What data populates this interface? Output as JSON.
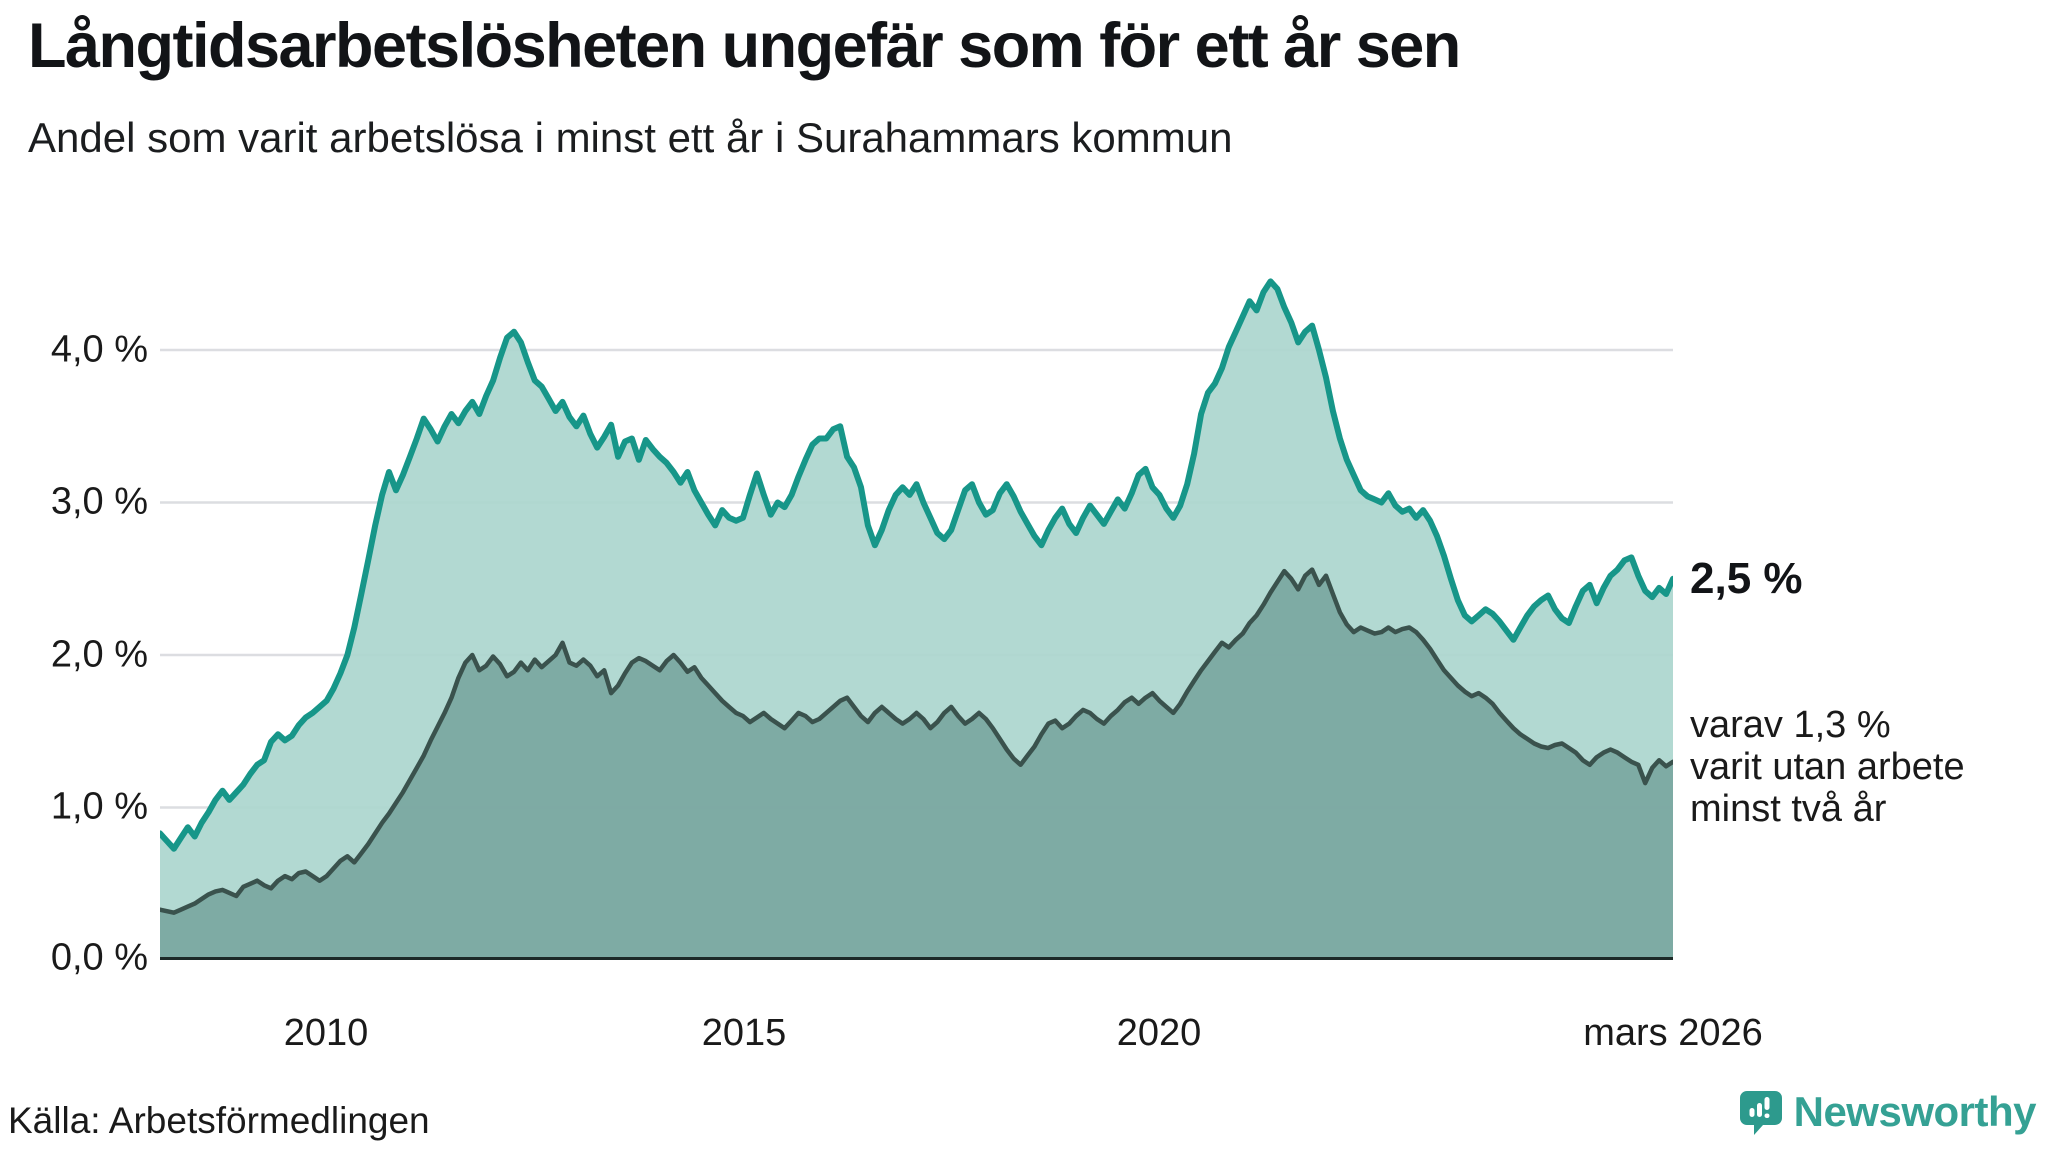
{
  "header": {
    "title": "Långtidsarbetslösheten ungefär som för ett år sen",
    "subtitle": "Andel som varit arbetslösa i minst ett år i Surahammars kommun"
  },
  "axes": {
    "y_ticks": [
      "4,0 %",
      "3,0 %",
      "2,0 %",
      "1,0 %",
      "0,0 %"
    ],
    "x_ticks": [
      "2010",
      "2015",
      "2020",
      "mars 2026"
    ]
  },
  "annotations": {
    "end_value_main": "2,5 %",
    "secondary_line1": "varav 1,3 %",
    "secondary_line2": "varit utan arbete",
    "secondary_line3": "minst två år"
  },
  "source": {
    "label": "Källa: Arbetsförmedlingen"
  },
  "branding": {
    "name": "Newsworthy",
    "logo_icon": "bar-chart-pin-icon",
    "text_color": "#35a194",
    "icon_color": "#2d9a8d"
  },
  "colors": {
    "line_1yr": "#179689",
    "fill_1yr": "#acd6cf",
    "line_2yr": "#3a524d",
    "fill_2yr": "#7aa7a0",
    "gridline": "#dcdde1",
    "axis_line": "#1d2a28",
    "background": "#ffffff",
    "text": "#1a1a1a"
  },
  "chart_data": {
    "type": "area",
    "title": "Långtidsarbetslösheten ungefär som för ett år sen",
    "subtitle": "Andel som varit arbetslösa i minst ett år i Surahammars kommun",
    "unit": "percent",
    "frequency": "monthly",
    "x_start": "2008-01",
    "x_end": "2026-03",
    "ylim": [
      0,
      4.6
    ],
    "y_gridlines": [
      1,
      2,
      3,
      4
    ],
    "grid": "horizontal-only",
    "legend_position": "annotated-at-line-end",
    "x_tick_labels": [
      "2010",
      "2015",
      "2020",
      "mars 2026"
    ],
    "x_tick_month_index": [
      24,
      84,
      144,
      218
    ],
    "series": [
      {
        "name": "Andel arbetslösa minst ett år",
        "end_label": "2,5 %",
        "end_value": 2.5,
        "color": "#179689",
        "fill": "#acd6cf",
        "values": [
          0.83,
          0.78,
          0.73,
          0.8,
          0.87,
          0.81,
          0.9,
          0.97,
          1.05,
          1.11,
          1.05,
          1.1,
          1.15,
          1.22,
          1.28,
          1.31,
          1.43,
          1.48,
          1.44,
          1.47,
          1.54,
          1.59,
          1.62,
          1.66,
          1.7,
          1.78,
          1.88,
          2.0,
          2.18,
          2.4,
          2.62,
          2.85,
          3.05,
          3.2,
          3.08,
          3.18,
          3.3,
          3.42,
          3.55,
          3.48,
          3.4,
          3.5,
          3.58,
          3.52,
          3.6,
          3.66,
          3.58,
          3.7,
          3.8,
          3.95,
          4.08,
          4.12,
          4.05,
          3.92,
          3.8,
          3.76,
          3.68,
          3.6,
          3.66,
          3.56,
          3.5,
          3.57,
          3.45,
          3.36,
          3.43,
          3.51,
          3.3,
          3.4,
          3.42,
          3.28,
          3.41,
          3.35,
          3.3,
          3.26,
          3.2,
          3.13,
          3.2,
          3.08,
          3.0,
          2.92,
          2.85,
          2.95,
          2.9,
          2.88,
          2.9,
          3.05,
          3.19,
          3.05,
          2.92,
          3.0,
          2.97,
          3.05,
          3.17,
          3.28,
          3.38,
          3.42,
          3.42,
          3.48,
          3.5,
          3.3,
          3.23,
          3.1,
          2.85,
          2.72,
          2.82,
          2.95,
          3.05,
          3.1,
          3.05,
          3.12,
          3.0,
          2.9,
          2.8,
          2.76,
          2.82,
          2.95,
          3.08,
          3.12,
          3.0,
          2.92,
          2.95,
          3.06,
          3.12,
          3.04,
          2.94,
          2.86,
          2.78,
          2.72,
          2.82,
          2.9,
          2.96,
          2.86,
          2.8,
          2.9,
          2.98,
          2.92,
          2.86,
          2.94,
          3.02,
          2.96,
          3.06,
          3.18,
          3.22,
          3.1,
          3.05,
          2.96,
          2.9,
          2.98,
          3.12,
          3.32,
          3.58,
          3.72,
          3.78,
          3.88,
          4.02,
          4.12,
          4.22,
          4.32,
          4.26,
          4.38,
          4.45,
          4.4,
          4.28,
          4.18,
          4.05,
          4.12,
          4.16,
          4.0,
          3.82,
          3.6,
          3.42,
          3.28,
          3.18,
          3.08,
          3.04,
          3.02,
          3.0,
          3.06,
          2.98,
          2.94,
          2.96,
          2.9,
          2.95,
          2.88,
          2.78,
          2.65,
          2.5,
          2.36,
          2.26,
          2.22,
          2.26,
          2.3,
          2.27,
          2.22,
          2.16,
          2.1,
          2.18,
          2.26,
          2.32,
          2.36,
          2.39,
          2.3,
          2.24,
          2.21,
          2.32,
          2.42,
          2.46,
          2.34,
          2.44,
          2.52,
          2.56,
          2.62,
          2.64,
          2.52,
          2.42,
          2.38,
          2.44,
          2.4,
          2.5
        ]
      },
      {
        "name": "varav utan arbete minst två år",
        "end_label": "1,3 %",
        "end_value": 1.3,
        "color": "#3a524d",
        "fill": "#7aa7a0",
        "values": [
          0.33,
          0.32,
          0.31,
          0.33,
          0.35,
          0.37,
          0.4,
          0.43,
          0.45,
          0.46,
          0.44,
          0.42,
          0.48,
          0.5,
          0.52,
          0.49,
          0.47,
          0.52,
          0.55,
          0.53,
          0.57,
          0.58,
          0.55,
          0.52,
          0.55,
          0.6,
          0.65,
          0.68,
          0.64,
          0.7,
          0.76,
          0.83,
          0.9,
          0.96,
          1.03,
          1.1,
          1.18,
          1.26,
          1.34,
          1.44,
          1.53,
          1.62,
          1.72,
          1.85,
          1.95,
          2.0,
          1.9,
          1.93,
          1.99,
          1.94,
          1.86,
          1.89,
          1.95,
          1.9,
          1.97,
          1.92,
          1.96,
          2.0,
          2.08,
          1.95,
          1.93,
          1.97,
          1.93,
          1.86,
          1.9,
          1.75,
          1.8,
          1.88,
          1.95,
          1.98,
          1.96,
          1.93,
          1.9,
          1.96,
          2.0,
          1.95,
          1.89,
          1.92,
          1.85,
          1.8,
          1.75,
          1.7,
          1.66,
          1.62,
          1.6,
          1.56,
          1.59,
          1.62,
          1.58,
          1.55,
          1.52,
          1.57,
          1.62,
          1.6,
          1.56,
          1.58,
          1.62,
          1.66,
          1.7,
          1.72,
          1.66,
          1.6,
          1.56,
          1.62,
          1.66,
          1.62,
          1.58,
          1.55,
          1.58,
          1.62,
          1.58,
          1.52,
          1.56,
          1.62,
          1.66,
          1.6,
          1.55,
          1.58,
          1.62,
          1.58,
          1.52,
          1.45,
          1.38,
          1.32,
          1.28,
          1.34,
          1.4,
          1.48,
          1.55,
          1.57,
          1.52,
          1.55,
          1.6,
          1.64,
          1.62,
          1.58,
          1.55,
          1.6,
          1.64,
          1.69,
          1.72,
          1.68,
          1.72,
          1.75,
          1.7,
          1.66,
          1.62,
          1.68,
          1.76,
          1.83,
          1.9,
          1.96,
          2.02,
          2.08,
          2.05,
          2.1,
          2.14,
          2.21,
          2.26,
          2.33,
          2.41,
          2.48,
          2.55,
          2.5,
          2.43,
          2.52,
          2.56,
          2.46,
          2.52,
          2.4,
          2.28,
          2.2,
          2.15,
          2.18,
          2.16,
          2.14,
          2.15,
          2.18,
          2.15,
          2.17,
          2.18,
          2.15,
          2.1,
          2.04,
          1.97,
          1.9,
          1.85,
          1.8,
          1.76,
          1.73,
          1.75,
          1.72,
          1.68,
          1.62,
          1.57,
          1.52,
          1.48,
          1.45,
          1.42,
          1.4,
          1.39,
          1.41,
          1.42,
          1.39,
          1.36,
          1.31,
          1.28,
          1.33,
          1.36,
          1.38,
          1.36,
          1.33,
          1.3,
          1.28,
          1.16,
          1.26,
          1.31,
          1.27,
          1.3
        ]
      }
    ]
  }
}
